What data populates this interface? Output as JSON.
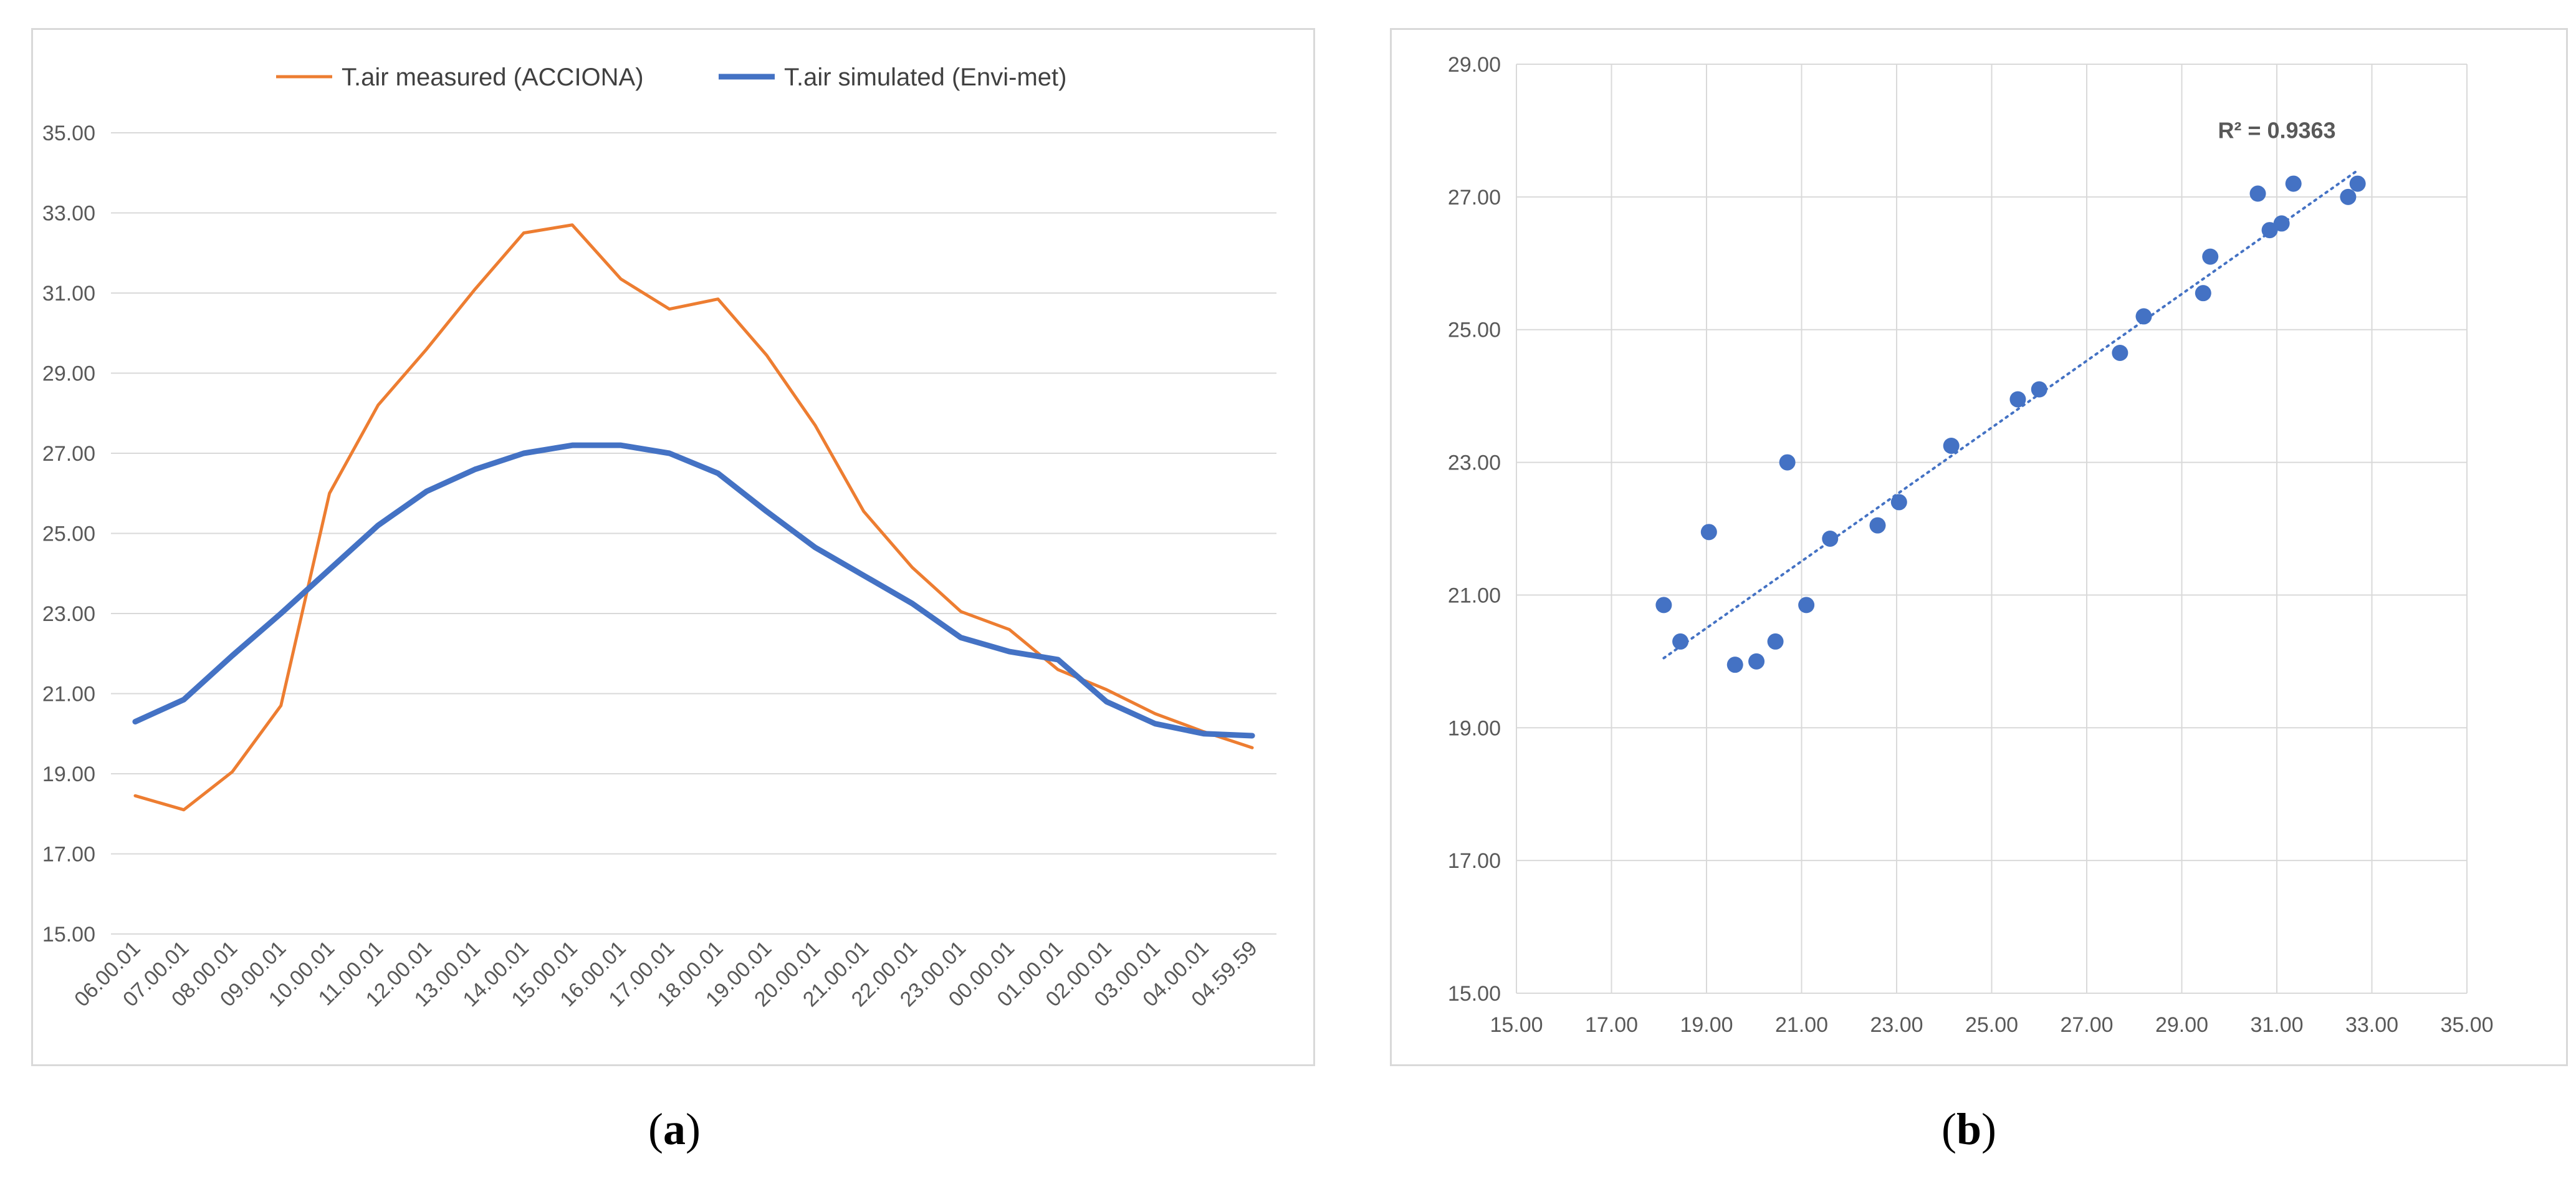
{
  "chart_data": [
    {
      "id": "a",
      "type": "line",
      "caption": "a",
      "categories": [
        "06.00.01",
        "07.00.01",
        "08.00.01",
        "09.00.01",
        "10.00.01",
        "11.00.01",
        "12.00.01",
        "13.00.01",
        "14.00.01",
        "15.00.01",
        "16.00.01",
        "17.00.01",
        "18.00.01",
        "19.00.01",
        "20.00.01",
        "21.00.01",
        "22.00.01",
        "23.00.01",
        "00.00.01",
        "01.00.01",
        "02.00.01",
        "03.00.01",
        "04.00.01",
        "04.59.59"
      ],
      "ylim": [
        15,
        35
      ],
      "yticks": [
        "15.00",
        "17.00",
        "19.00",
        "21.00",
        "23.00",
        "25.00",
        "27.00",
        "29.00",
        "31.00",
        "33.00",
        "35.00"
      ],
      "series": [
        {
          "name": "T.air measured (ACCIONA)",
          "color": "#ED7D31",
          "values": [
            18.45,
            18.1,
            19.05,
            20.7,
            26.0,
            28.2,
            29.6,
            31.1,
            32.5,
            32.7,
            31.35,
            30.6,
            30.85,
            29.45,
            27.7,
            25.55,
            24.15,
            23.05,
            22.6,
            21.6,
            21.1,
            20.5,
            20.05,
            19.65
          ]
        },
        {
          "name": "T.air simulated (Envi-met)",
          "color": "#4472C4",
          "values": [
            20.3,
            20.85,
            21.95,
            23.0,
            24.1,
            25.2,
            26.05,
            26.6,
            27.0,
            27.2,
            27.2,
            27.0,
            26.5,
            25.55,
            24.65,
            23.95,
            23.25,
            22.4,
            22.05,
            21.85,
            20.8,
            20.25,
            20.0,
            19.95
          ]
        }
      ]
    },
    {
      "id": "b",
      "type": "scatter",
      "caption": "b",
      "xlim": [
        15,
        35
      ],
      "ylim": [
        15,
        29
      ],
      "xticks": [
        "15.00",
        "17.00",
        "19.00",
        "21.00",
        "23.00",
        "25.00",
        "27.00",
        "29.00",
        "31.00",
        "33.00",
        "35.00"
      ],
      "yticks": [
        "15.00",
        "17.00",
        "19.00",
        "21.00",
        "23.00",
        "25.00",
        "27.00",
        "29.00"
      ],
      "point_color": "#4472C4",
      "points": [
        [
          18.1,
          20.85
        ],
        [
          18.45,
          20.3
        ],
        [
          19.05,
          21.95
        ],
        [
          19.6,
          19.95
        ],
        [
          20.05,
          20.0
        ],
        [
          20.45,
          20.3
        ],
        [
          20.7,
          23.0
        ],
        [
          21.1,
          20.85
        ],
        [
          21.6,
          21.85
        ],
        [
          22.6,
          22.05
        ],
        [
          23.05,
          22.4
        ],
        [
          24.15,
          23.25
        ],
        [
          25.55,
          23.95
        ],
        [
          26.0,
          24.1
        ],
        [
          27.7,
          24.65
        ],
        [
          28.2,
          25.2
        ],
        [
          29.45,
          25.55
        ],
        [
          29.6,
          26.1
        ],
        [
          30.6,
          27.05
        ],
        [
          30.85,
          26.5
        ],
        [
          31.1,
          26.6
        ],
        [
          31.35,
          27.2
        ],
        [
          32.5,
          27.0
        ],
        [
          32.7,
          27.2
        ]
      ],
      "trendline": {
        "x1": 18.1,
        "y1": 20.05,
        "x2": 32.7,
        "y2": 27.4
      },
      "annotation": "R² = 0.9363",
      "annotation_pos": [
        31.0,
        28.0
      ]
    }
  ]
}
